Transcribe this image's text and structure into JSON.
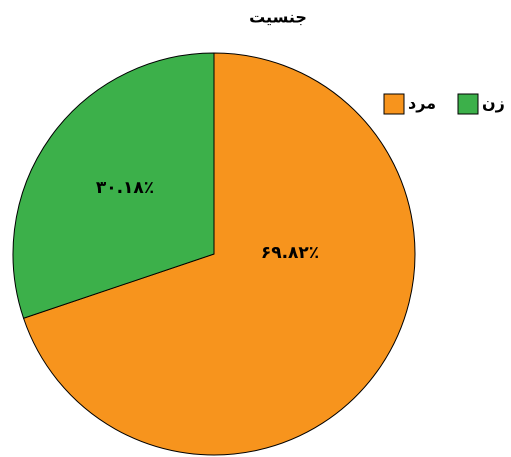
{
  "chart_data": {
    "type": "pie",
    "title": "جنسیت",
    "categories": [
      "مرد",
      "زن"
    ],
    "values": [
      69.82,
      30.18
    ],
    "value_labels": [
      "۶۹.۸۲٪",
      "۳۰.۱۸٪"
    ],
    "colors": [
      "#f7941d",
      "#3cb04a"
    ],
    "legend": "top-right"
  }
}
